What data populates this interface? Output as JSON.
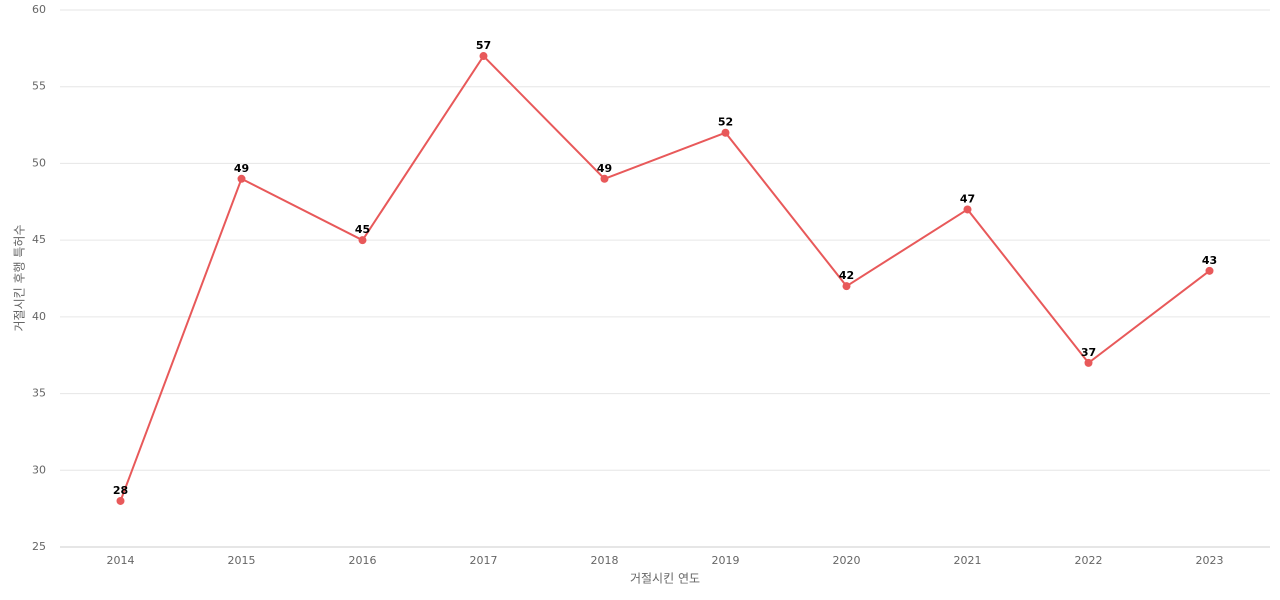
{
  "chart_data": {
    "type": "line",
    "x_label": "거절시킨 연도",
    "y_label": "거절시킨 후행 특허수",
    "categories": [
      "2014",
      "2015",
      "2016",
      "2017",
      "2018",
      "2019",
      "2020",
      "2021",
      "2022",
      "2023"
    ],
    "series": [
      {
        "name": "거절시킨 후행 특허수",
        "color": "#e8595a",
        "values": [
          28,
          49,
          45,
          57,
          49,
          52,
          42,
          47,
          37,
          43
        ]
      }
    ],
    "ylim": [
      25,
      60
    ],
    "yticks": [
      25,
      30,
      35,
      40,
      45,
      50,
      55,
      60
    ],
    "grid": true
  }
}
